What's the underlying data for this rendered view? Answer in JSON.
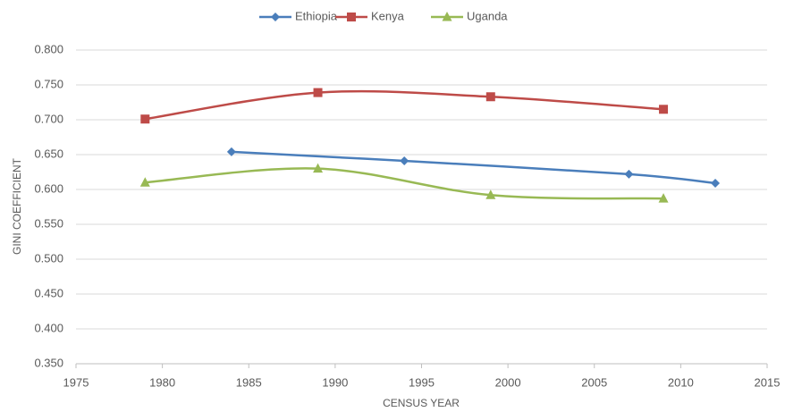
{
  "chart_data": {
    "type": "line",
    "smooth": true,
    "xlabel": "CENSUS YEAR",
    "ylabel": "GINI COEFFICIENT",
    "legend": "top",
    "grid": true,
    "xlim": [
      1975,
      2015
    ],
    "xticks": [
      1975,
      1980,
      1985,
      1990,
      1995,
      2000,
      2005,
      2010,
      2015
    ],
    "ylim": [
      0.35,
      0.8
    ],
    "yticks": [
      {
        "value": 0.35,
        "label": "0.350"
      },
      {
        "value": 0.4,
        "label": "0.400"
      },
      {
        "value": 0.45,
        "label": "0.450"
      },
      {
        "value": 0.5,
        "label": "0.500"
      },
      {
        "value": 0.55,
        "label": "0.550"
      },
      {
        "value": 0.6,
        "label": "0.600"
      },
      {
        "value": 0.65,
        "label": "0.650"
      },
      {
        "value": 0.7,
        "label": "0.700"
      },
      {
        "value": 0.75,
        "label": "0.750"
      },
      {
        "value": 0.8,
        "label": "0.800"
      }
    ],
    "series": [
      {
        "name": "Ethiopia",
        "color": "#4a7ebb",
        "marker": "diamond",
        "x": [
          1984,
          1994,
          2007,
          2012
        ],
        "values": [
          0.654,
          0.641,
          0.622,
          0.609
        ]
      },
      {
        "name": "Kenya",
        "color": "#be4b48",
        "marker": "square",
        "x": [
          1979,
          1989,
          1999,
          2009
        ],
        "values": [
          0.701,
          0.739,
          0.733,
          0.715
        ]
      },
      {
        "name": "Uganda",
        "color": "#98b954",
        "marker": "triangle",
        "x": [
          1979,
          1989,
          1999,
          2009
        ],
        "values": [
          0.61,
          0.63,
          0.592,
          0.587
        ]
      }
    ]
  }
}
